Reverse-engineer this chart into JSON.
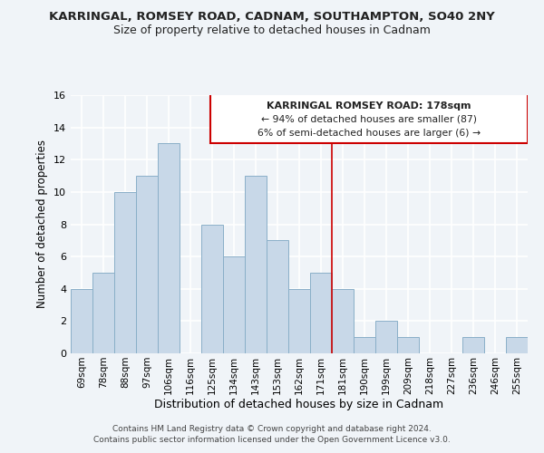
{
  "title": "KARRINGAL, ROMSEY ROAD, CADNAM, SOUTHAMPTON, SO40 2NY",
  "subtitle": "Size of property relative to detached houses in Cadnam",
  "xlabel": "Distribution of detached houses by size in Cadnam",
  "ylabel": "Number of detached properties",
  "bar_color": "#c8d8e8",
  "bar_edge_color": "#8aafc8",
  "categories": [
    "69sqm",
    "78sqm",
    "88sqm",
    "97sqm",
    "106sqm",
    "116sqm",
    "125sqm",
    "134sqm",
    "143sqm",
    "153sqm",
    "162sqm",
    "171sqm",
    "181sqm",
    "190sqm",
    "199sqm",
    "209sqm",
    "218sqm",
    "227sqm",
    "236sqm",
    "246sqm",
    "255sqm"
  ],
  "values": [
    4,
    5,
    10,
    11,
    13,
    0,
    8,
    6,
    11,
    7,
    4,
    5,
    4,
    1,
    2,
    1,
    0,
    0,
    1,
    0,
    1
  ],
  "ylim": [
    0,
    16
  ],
  "yticks": [
    0,
    2,
    4,
    6,
    8,
    10,
    12,
    14,
    16
  ],
  "vline_index": 12,
  "vline_color": "#cc0000",
  "annotation_title": "KARRINGAL ROMSEY ROAD: 178sqm",
  "annotation_line1": "← 94% of detached houses are smaller (87)",
  "annotation_line2": "6% of semi-detached houses are larger (6) →",
  "footer1": "Contains HM Land Registry data © Crown copyright and database right 2024.",
  "footer2": "Contains public sector information licensed under the Open Government Licence v3.0.",
  "background_color": "#f0f4f8",
  "grid_color": "#ffffff"
}
